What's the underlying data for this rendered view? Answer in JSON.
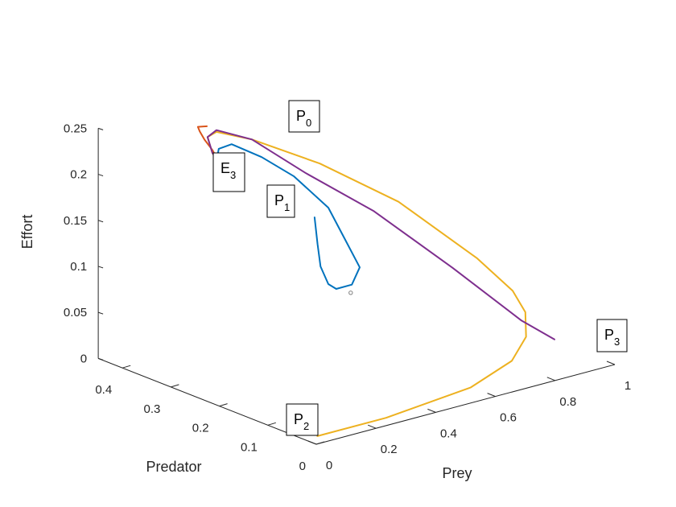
{
  "chart_data": {
    "type": "line",
    "title": "",
    "axes": {
      "x": {
        "label": "Prey",
        "ticks": [
          "0",
          "0.2",
          "0.4",
          "0.6",
          "0.8",
          "1"
        ],
        "range": [
          0,
          1
        ]
      },
      "y": {
        "label": "Predator",
        "ticks": [
          "0",
          "0.1",
          "0.2",
          "0.3",
          "0.4"
        ],
        "range": [
          0,
          0.45
        ]
      },
      "z": {
        "label": "Effort",
        "ticks": [
          "0",
          "0.05",
          "0.1",
          "0.15",
          "0.2",
          "0.25"
        ],
        "range": [
          0,
          0.25
        ]
      }
    },
    "grid": false,
    "colors": {
      "P0": "#D95319",
      "P1": "#0072BD",
      "P2": "#EDB120",
      "P3": "#7E2F8E",
      "equilibrium_marker": "#808080",
      "axis": "#262626"
    },
    "series": [
      {
        "start_label": "P0",
        "color": "#D95319",
        "points": [
          [
            0.25,
            0.38,
            0.245
          ],
          [
            0.22,
            0.38,
            0.247
          ],
          [
            0.21,
            0.37,
            0.245
          ],
          [
            0.21,
            0.36,
            0.238
          ],
          [
            0.22,
            0.35,
            0.228
          ],
          [
            0.23,
            0.345,
            0.218
          ],
          [
            0.235,
            0.345,
            0.213
          ]
        ]
      },
      {
        "start_label": "P1",
        "color": "#0072BD",
        "points": [
          [
            0.4,
            0.25,
            0.16
          ],
          [
            0.41,
            0.25,
            0.13
          ],
          [
            0.42,
            0.25,
            0.105
          ],
          [
            0.43,
            0.24,
            0.087
          ],
          [
            0.44,
            0.23,
            0.083
          ],
          [
            0.46,
            0.21,
            0.09
          ],
          [
            0.47,
            0.2,
            0.11
          ],
          [
            0.45,
            0.22,
            0.14
          ],
          [
            0.43,
            0.24,
            0.17
          ],
          [
            0.38,
            0.28,
            0.2
          ],
          [
            0.32,
            0.31,
            0.22
          ],
          [
            0.26,
            0.335,
            0.234
          ],
          [
            0.225,
            0.34,
            0.231
          ],
          [
            0.22,
            0.34,
            0.222
          ],
          [
            0.23,
            0.343,
            0.215
          ],
          [
            0.235,
            0.345,
            0.213
          ]
        ]
      },
      {
        "start_label": "P2",
        "color": "#EDB120",
        "points": [
          [
            0.02,
            0.01,
            0.005
          ],
          [
            0.25,
            0.01,
            0.005
          ],
          [
            0.55,
            0.02,
            0.01
          ],
          [
            0.72,
            0.04,
            0.02
          ],
          [
            0.8,
            0.06,
            0.035
          ],
          [
            0.83,
            0.08,
            0.055
          ],
          [
            0.82,
            0.1,
            0.075
          ],
          [
            0.75,
            0.13,
            0.11
          ],
          [
            0.6,
            0.2,
            0.17
          ],
          [
            0.45,
            0.27,
            0.21
          ],
          [
            0.32,
            0.33,
            0.235
          ],
          [
            0.25,
            0.36,
            0.243
          ],
          [
            0.22,
            0.36,
            0.24
          ],
          [
            0.22,
            0.35,
            0.225
          ],
          [
            0.235,
            0.345,
            0.213
          ]
        ]
      },
      {
        "start_label": "P3",
        "color": "#7E2F8E",
        "points": [
          [
            0.96,
            0.1,
            0.01
          ],
          [
            0.85,
            0.1,
            0.04
          ],
          [
            0.7,
            0.15,
            0.1
          ],
          [
            0.55,
            0.22,
            0.16
          ],
          [
            0.42,
            0.28,
            0.2
          ],
          [
            0.32,
            0.33,
            0.235
          ],
          [
            0.25,
            0.36,
            0.245
          ],
          [
            0.22,
            0.36,
            0.24
          ],
          [
            0.22,
            0.35,
            0.225
          ],
          [
            0.235,
            0.345,
            0.213
          ]
        ]
      }
    ],
    "equilibrium_marker": {
      "point": [
        0.44,
        0.2,
        0.085
      ]
    },
    "annotations": [
      {
        "main": "P",
        "sub": "0"
      },
      {
        "main": "P",
        "sub": "1"
      },
      {
        "main": "P",
        "sub": "2"
      },
      {
        "main": "P",
        "sub": "3"
      },
      {
        "main": "E",
        "sub": "3"
      }
    ]
  }
}
